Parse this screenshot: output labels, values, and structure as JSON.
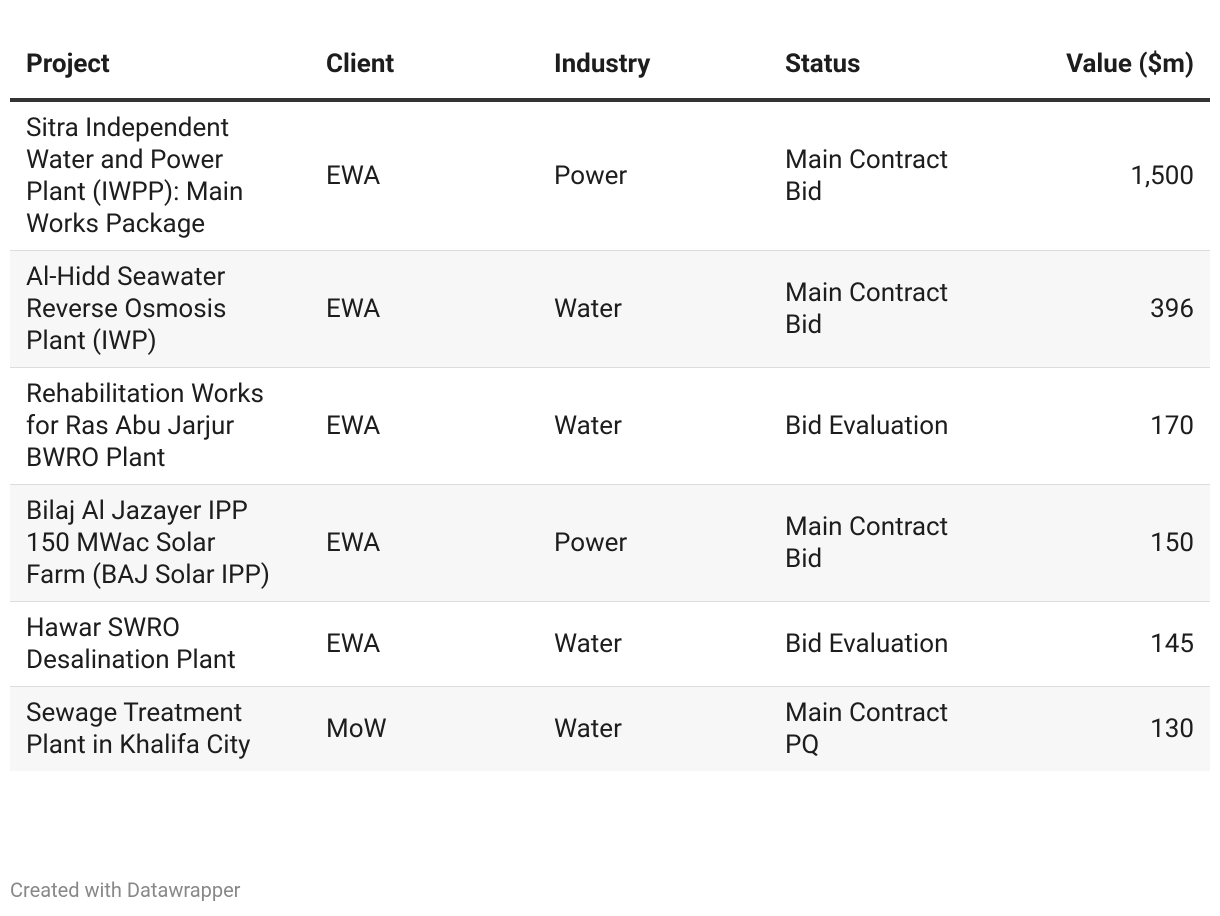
{
  "table": {
    "header": [
      "Project",
      "Client",
      "Industry",
      "Status",
      "Value ($m)"
    ],
    "rows": [
      [
        "Sitra Independent Water and Power Plant (IWPP): Main Works Package",
        "EWA",
        "Power",
        "Main Contract Bid",
        "1,500"
      ],
      [
        "Al-Hidd Seawater Reverse Osmosis Plant (IWP)",
        "EWA",
        "Water",
        "Main Contract Bid",
        "396"
      ],
      [
        "Rehabilitation Works for Ras Abu Jarjur BWRO Plant",
        "EWA",
        "Water",
        "Bid Evaluation",
        "170"
      ],
      [
        "Bilaj Al Jazayer IPP 150 MWac Solar Farm (BAJ Solar IPP)",
        "EWA",
        "Power",
        "Main Contract Bid",
        "150"
      ],
      [
        "Hawar SWRO Desalination Plant",
        "EWA",
        "Water",
        "Bid Evaluation",
        "145"
      ],
      [
        "Sewage Treatment Plant in Khalifa City",
        "MoW",
        "Water",
        "Main Contract PQ",
        "130"
      ]
    ]
  },
  "footer": {
    "credit": "Created with Datawrapper"
  }
}
